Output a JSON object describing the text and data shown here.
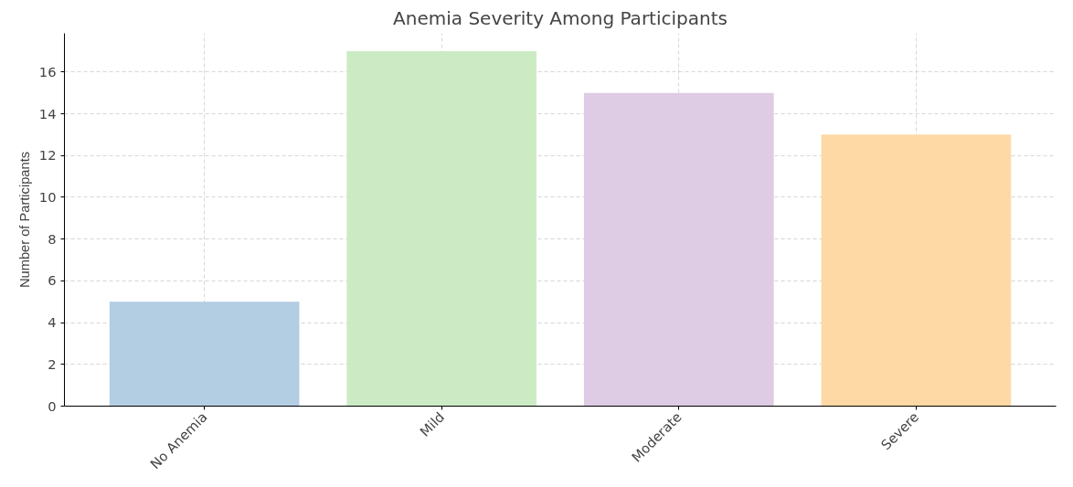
{
  "chart_data": {
    "type": "bar",
    "title": "Anemia Severity Among Participants",
    "ylabel": "Number of Participants",
    "categories": [
      "No Anemia",
      "Mild",
      "Moderate",
      "Severe"
    ],
    "values": [
      5,
      17,
      15,
      13
    ],
    "colors": [
      "#b3cde3",
      "#ccebc5",
      "#decbe4",
      "#fed9a6"
    ],
    "ylim": [
      0,
      17.85
    ],
    "yticks": [
      0,
      2,
      4,
      6,
      8,
      10,
      12,
      14,
      16
    ],
    "grid": true
  }
}
